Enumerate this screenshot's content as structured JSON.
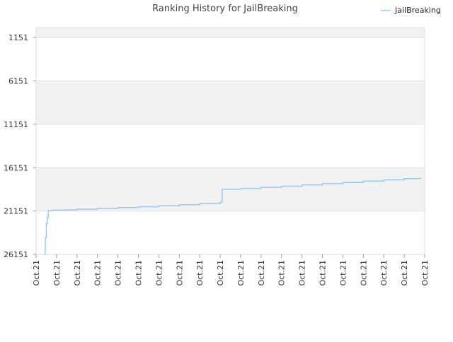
{
  "chart_data": {
    "type": "line",
    "title": "Ranking History for JailBreaking",
    "xlabel": "",
    "ylabel": "",
    "y_inverted": true,
    "ylim": [
      26151,
      0
    ],
    "y_ticks": [
      1151,
      6151,
      11151,
      16151,
      21151,
      26151
    ],
    "y_tick_labels": [
      "1151",
      "6151",
      "11151",
      "16151",
      "21151",
      "26151"
    ],
    "x_tick_labels": [
      "Oct.21",
      "Oct.21",
      "Oct.21",
      "Oct.21",
      "Oct.21",
      "Oct.21",
      "Oct.21",
      "Oct.21",
      "Oct.21",
      "Oct.21",
      "Oct.21",
      "Oct.21",
      "Oct.21",
      "Oct.21",
      "Oct.21",
      "Oct.21",
      "Oct.21",
      "Oct.21",
      "Oct.21",
      "Oct.21"
    ],
    "grid": true,
    "legend": {
      "position": "top-right"
    },
    "series": [
      {
        "name": "JailBreaking",
        "color": "#99c9f0",
        "x": [
          0.4,
          0.45,
          0.5,
          0.55,
          0.6,
          0.7,
          0.8,
          1.5,
          2.0,
          3.0,
          4.0,
          5.0,
          6.0,
          7.0,
          8.0,
          9.0,
          9.1,
          10.0,
          11.0,
          12.0,
          13.0,
          14.0,
          15.0,
          16.0,
          17.0,
          18.0,
          18.8
        ],
        "y": [
          26151,
          24200,
          22600,
          21900,
          21110,
          21100,
          21050,
          21020,
          20940,
          20860,
          20760,
          20660,
          20540,
          20420,
          20280,
          20150,
          18650,
          18550,
          18420,
          18290,
          18150,
          18000,
          17860,
          17700,
          17560,
          17410,
          17280
        ]
      }
    ]
  }
}
